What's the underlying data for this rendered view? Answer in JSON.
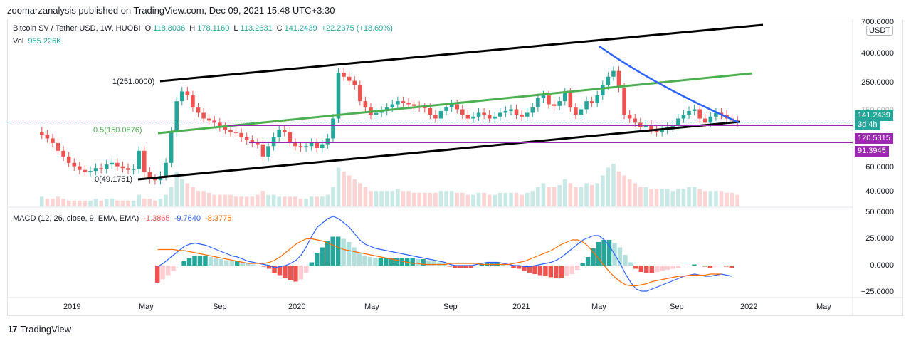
{
  "header": {
    "publisher_line": "zoomarzanalysis published on TradingView.com, Dec 09, 2021 15:48 UTC+3:30"
  },
  "legend": {
    "symbol": "Bitcoin SV / Tether USD, 1W, HUOBI",
    "o_label": "O",
    "o_value": "118.8036",
    "h_label": "H",
    "h_value": "178.1160",
    "l_label": "L",
    "l_value": "113.2631",
    "c_label": "C",
    "c_value": "141.2439",
    "change": "+22.2375 (+18.69%)",
    "vol_label": "Vol",
    "vol_value": "955.226K"
  },
  "macd_legend": {
    "title": "MACD (12, 26, close, 9, EMA, EMA)",
    "hist_value": "-1.3865",
    "macd_value": "-9.7640",
    "signal_value": "-8.3775"
  },
  "price_axis": {
    "unit": "USDT",
    "ticks": [
      "700.0000",
      "400.0000",
      "250.0000",
      "150.0000",
      "60.0000",
      "40.0000"
    ],
    "badges": [
      {
        "text": "141.2439",
        "color": "#26a69a"
      },
      {
        "text": "3d 4h",
        "color": "#26a69a"
      },
      {
        "text": "120.5315",
        "color": "#9c27b0"
      },
      {
        "text": "91.3945",
        "color": "#9c27b0"
      }
    ]
  },
  "macd_axis": {
    "ticks": [
      "50.0000",
      "25.0000",
      "0.0000",
      "−25.0000"
    ]
  },
  "time_axis": {
    "labels": [
      "2019",
      "May",
      "Sep",
      "2020",
      "May",
      "Sep",
      "2021",
      "May",
      "Sep",
      "2022",
      "May"
    ]
  },
  "fib_labels": {
    "top": "1(251.0000)",
    "mid": "0.5(150.0876)",
    "bottom": "0(49.1751)"
  },
  "footer": {
    "brand": "TradingView",
    "logo": "17"
  },
  "colors": {
    "up": "#26a69a",
    "down": "#ef5350",
    "channel": "#000000",
    "midline": "#4caf50",
    "curve": "#2962ff",
    "support": "#9c27b0",
    "macd": "#2962ff",
    "signal": "#ff6d00"
  },
  "chart_data": {
    "type": "candlestick",
    "title": "Bitcoin SV / Tether USD, 1W, HUOBI",
    "x_range": [
      "2018-11",
      "2022-06"
    ],
    "y_scale": "log",
    "ylim": [
      35,
      750
    ],
    "current_price": 141.2439,
    "horizontal_levels": [
      120.5315,
      91.3945
    ],
    "fib_levels": [
      251.0,
      150.0876,
      49.1751
    ],
    "series": [
      {
        "name": "BSV/USDT weekly close",
        "values": [
          115,
          108,
          100,
          88,
          80,
          72,
          68,
          64,
          62,
          63,
          66,
          65,
          70,
          72,
          68,
          66,
          64,
          65,
          88,
          62,
          55,
          54,
          58,
          72,
          120,
          200,
          235,
          220,
          180,
          165,
          150,
          145,
          140,
          130,
          125,
          120,
          118,
          110,
          105,
          100,
          98,
          80,
          95,
          110,
          125,
          120,
          100,
          95,
          93,
          95,
          100,
          92,
          98,
          108,
          150,
          320,
          300,
          280,
          260,
          200,
          180,
          160,
          165,
          170,
          180,
          190,
          200,
          195,
          190,
          185,
          180,
          178,
          160,
          150,
          170,
          180,
          190,
          175,
          160,
          150,
          155,
          165,
          160,
          150,
          155,
          165,
          170,
          175,
          160,
          155,
          165,
          180,
          210,
          220,
          190,
          185,
          200,
          230,
          180,
          160,
          175,
          200,
          195,
          220,
          260,
          300,
          330,
          250,
          160,
          150,
          140,
          130,
          135,
          125,
          120,
          125,
          130,
          135,
          150,
          160,
          170,
          175,
          150,
          140,
          155,
          165,
          160,
          150,
          145,
          141
        ]
      },
      {
        "name": "Volume",
        "values": [
          5,
          4,
          4,
          5,
          4,
          3,
          3,
          3,
          3,
          3,
          4,
          3,
          4,
          4,
          3,
          3,
          3,
          3,
          6,
          4,
          4,
          3,
          4,
          6,
          10,
          18,
          14,
          12,
          10,
          8,
          8,
          7,
          6,
          6,
          6,
          6,
          5,
          5,
          5,
          5,
          6,
          8,
          6,
          6,
          5,
          5,
          5,
          5,
          4,
          4,
          5,
          5,
          5,
          6,
          10,
          20,
          18,
          16,
          14,
          12,
          10,
          8,
          8,
          8,
          8,
          8,
          9,
          8,
          8,
          7,
          7,
          7,
          7,
          7,
          8,
          8,
          8,
          7,
          7,
          6,
          6,
          7,
          7,
          6,
          6,
          7,
          7,
          7,
          7,
          6,
          7,
          8,
          10,
          12,
          10,
          10,
          11,
          14,
          12,
          10,
          10,
          12,
          11,
          12,
          16,
          20,
          22,
          18,
          16,
          14,
          12,
          10,
          10,
          9,
          9,
          9,
          9,
          8,
          9,
          9,
          10,
          10,
          9,
          8,
          8,
          8,
          8,
          7,
          7,
          6
        ]
      },
      {
        "name": "MACD",
        "values": [
          -1,
          2,
          6,
          10,
          14,
          18,
          20,
          21,
          20,
          19,
          17,
          15,
          13,
          11,
          9,
          8,
          6,
          4,
          3,
          2,
          1,
          0,
          -2,
          -1,
          0,
          2,
          5,
          10,
          18,
          28,
          36,
          40,
          44,
          46,
          44,
          40,
          36,
          30,
          24,
          20,
          18,
          16,
          15,
          14,
          13,
          12,
          11,
          10,
          9,
          8,
          7,
          6,
          5,
          4,
          3,
          1,
          0,
          0,
          0,
          0,
          1,
          2,
          3,
          3,
          3,
          2,
          1,
          0,
          0,
          -1,
          -1,
          0,
          1,
          2,
          3,
          5,
          8,
          12,
          16,
          20,
          24,
          26,
          28,
          28,
          24,
          18,
          10,
          2,
          -8,
          -16,
          -22,
          -24,
          -24,
          -22,
          -20,
          -18,
          -16,
          -14,
          -12,
          -10,
          -9,
          -8,
          -9,
          -10,
          -10,
          -9,
          -8,
          -9,
          -10
        ]
      },
      {
        "name": "Signal",
        "values": [
          15,
          15,
          15,
          15,
          14,
          14,
          13,
          12,
          11,
          10,
          9,
          8,
          7,
          6,
          5,
          4,
          3,
          2,
          2,
          2,
          2,
          3,
          5,
          8,
          12,
          16,
          20,
          23,
          25,
          25,
          24,
          23,
          21,
          19,
          17,
          15,
          14,
          13,
          12,
          11,
          10,
          9,
          8,
          7,
          6,
          5,
          4,
          3,
          2,
          2,
          1,
          1,
          1,
          1,
          1,
          2,
          2,
          2,
          2,
          2,
          2,
          1,
          1,
          1,
          1,
          1,
          1,
          2,
          3,
          4,
          6,
          8,
          10,
          12,
          14,
          17,
          20,
          22,
          24,
          24,
          22,
          18,
          12,
          6,
          0,
          -6,
          -11,
          -15,
          -18,
          -19,
          -19,
          -18,
          -17,
          -15,
          -14,
          -13,
          -12,
          -11,
          -10,
          -10,
          -9,
          -9,
          -9,
          -9,
          -8,
          -8,
          -8
        ]
      }
    ]
  }
}
